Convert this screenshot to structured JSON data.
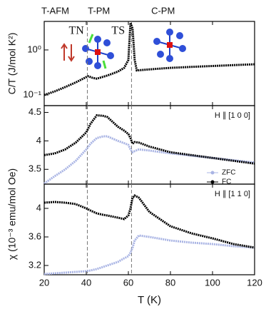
{
  "chart_data": [
    {
      "type": "line",
      "ylabel": "C/T (J/mol K²)",
      "log": true,
      "xlim": [
        20,
        120
      ],
      "xticks": [
        20,
        40,
        60,
        80,
        100,
        120
      ],
      "ylim": [
        0.058,
        4.3
      ],
      "yticks": [
        {
          "value": 0.1,
          "label": "10⁻¹"
        },
        {
          "value": 1,
          "label": "10⁰"
        }
      ],
      "vlines": [
        40.5,
        61.5
      ],
      "phases": [
        "T-AFM",
        "T-PM",
        "C-PM"
      ],
      "transitions": [
        "TN",
        "TS"
      ],
      "x": [
        20,
        25,
        30,
        35,
        40,
        41,
        43,
        45,
        50,
        55,
        58,
        60,
        61,
        62,
        63,
        64,
        70,
        80,
        90,
        100,
        110,
        120
      ],
      "series": [
        {
          "color": "#000000",
          "values": [
            0.1,
            0.12,
            0.15,
            0.19,
            0.25,
            0.26,
            0.24,
            0.23,
            0.27,
            0.33,
            0.4,
            0.6,
            4.0,
            3.0,
            0.6,
            0.35,
            0.37,
            0.4,
            0.42,
            0.44,
            0.46,
            0.48
          ]
        }
      ]
    },
    {
      "type": "line",
      "annotation": "H ∥ [1 0 0]",
      "xlim": [
        20,
        120
      ],
      "xticks": [
        20,
        40,
        60,
        80,
        100,
        120
      ],
      "ylim": [
        3.24,
        4.62
      ],
      "yticks": [
        3.5,
        4.0,
        4.5
      ],
      "vlines": [
        40.5,
        61.5
      ],
      "x": [
        20,
        25,
        30,
        35,
        40,
        42,
        45,
        48,
        50,
        55,
        58,
        60,
        61,
        62,
        63,
        65,
        70,
        80,
        90,
        100,
        110,
        120
      ],
      "series": [
        {
          "name": "ZFC",
          "color": "#a9b4e4",
          "values": [
            3.25,
            3.38,
            3.5,
            3.65,
            3.85,
            3.95,
            4.05,
            4.08,
            4.08,
            4.0,
            3.96,
            3.93,
            3.85,
            3.8,
            3.82,
            3.85,
            3.83,
            3.78,
            3.74,
            3.7,
            3.66,
            3.62
          ]
        },
        {
          "name": "FC",
          "color": "#000000",
          "values": [
            3.75,
            3.78,
            3.85,
            3.97,
            4.15,
            4.3,
            4.45,
            4.44,
            4.42,
            4.25,
            4.18,
            4.12,
            4.05,
            3.95,
            3.98,
            3.97,
            3.9,
            3.8,
            3.75,
            3.7,
            3.65,
            3.6
          ]
        }
      ]
    },
    {
      "type": "line",
      "annotation": "H ∥ [1 1 0]",
      "xlabel": "T (K)",
      "ylabel": "χ (10⁻³ emu/mol Oe)",
      "xlim": [
        20,
        120
      ],
      "xticks": [
        20,
        40,
        60,
        80,
        100,
        120
      ],
      "ylim": [
        3.07,
        4.34
      ],
      "yticks": [
        3.2,
        3.6,
        4.0
      ],
      "vlines": [
        40.5,
        61.5
      ],
      "x": [
        20,
        25,
        30,
        35,
        40,
        42,
        45,
        48,
        50,
        55,
        58,
        60,
        61,
        62,
        63,
        65,
        70,
        80,
        90,
        100,
        110,
        120
      ],
      "series": [
        {
          "name": "ZFC",
          "color": "#a9b4e4",
          "values": [
            3.08,
            3.09,
            3.1,
            3.11,
            3.12,
            3.13,
            3.15,
            3.18,
            3.2,
            3.25,
            3.3,
            3.33,
            3.38,
            3.45,
            3.55,
            3.62,
            3.6,
            3.55,
            3.52,
            3.5,
            3.47,
            3.45
          ]
        },
        {
          "name": "FC",
          "color": "#000000",
          "values": [
            4.08,
            4.09,
            4.08,
            4.06,
            4.0,
            3.97,
            3.93,
            3.91,
            3.9,
            3.87,
            3.85,
            3.9,
            4.0,
            4.15,
            4.18,
            4.15,
            3.95,
            3.75,
            3.65,
            3.58,
            3.5,
            3.45
          ]
        }
      ]
    }
  ]
}
